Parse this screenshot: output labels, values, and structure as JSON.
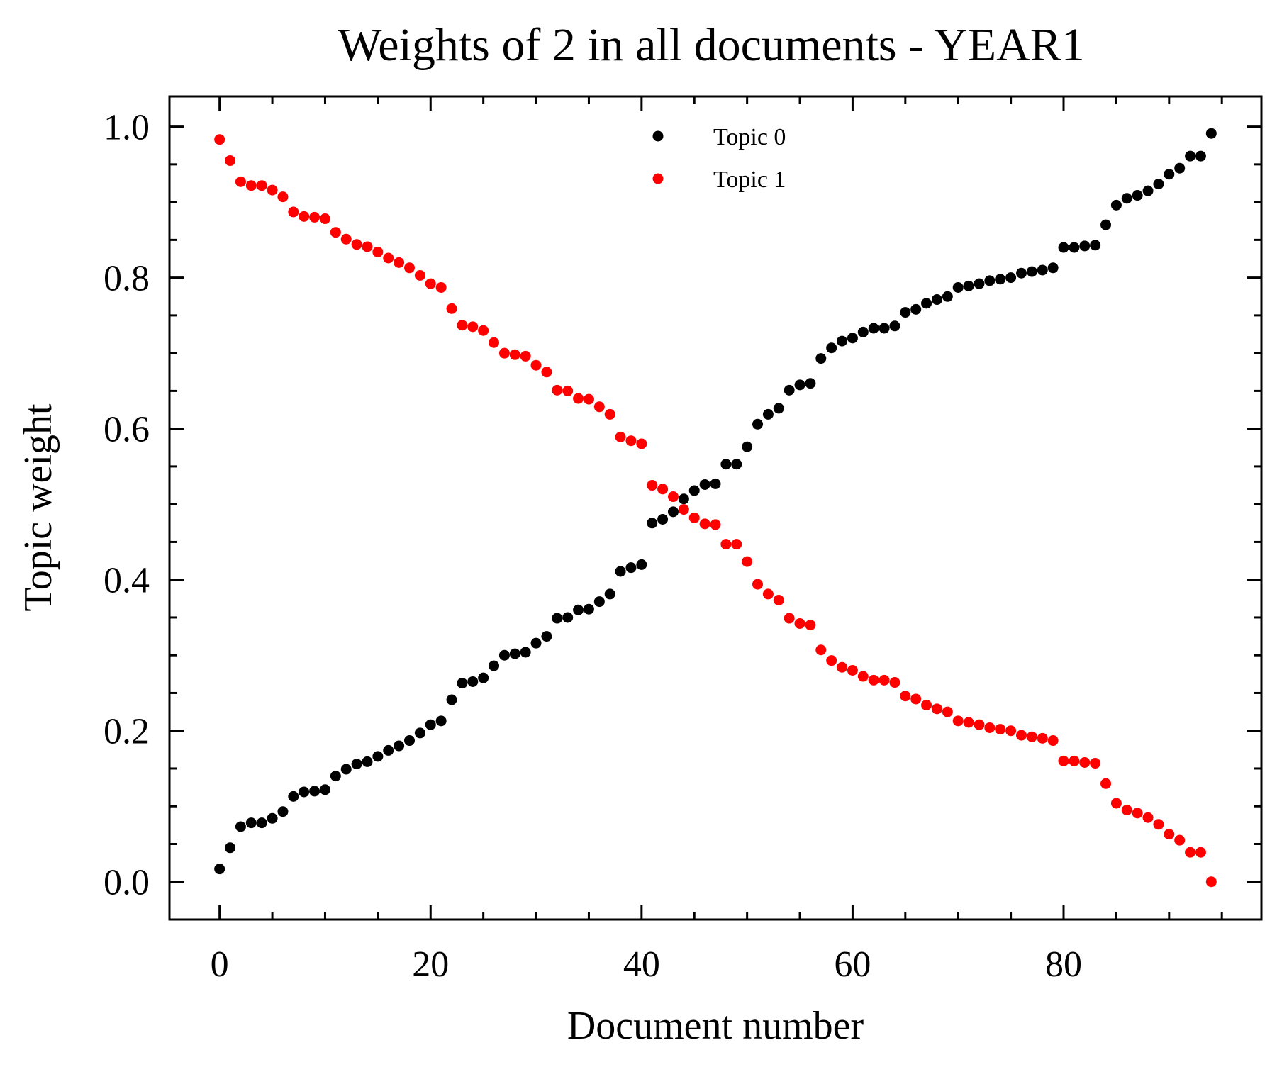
{
  "colors": {
    "Topic 0": "#000000",
    "Topic 1": "#ff0000"
  },
  "chart_data": {
    "type": "scatter",
    "title": "Weights of 2 in all documents - YEAR1",
    "xlabel": "Document number",
    "ylabel": "Topic weight",
    "xlim": [
      -4.75,
      98.75
    ],
    "ylim": [
      -0.05,
      1.04
    ],
    "xticks": [
      0,
      20,
      40,
      60,
      80
    ],
    "xtick_labels": [
      "0",
      "20",
      "40",
      "60",
      "80"
    ],
    "yticks": [
      0.0,
      0.2,
      0.4,
      0.6,
      0.8,
      1.0
    ],
    "ytick_labels": [
      "0.0",
      "0.2",
      "0.4",
      "0.6",
      "0.8",
      "1.0"
    ],
    "grid": false,
    "legend": "upper-center",
    "x": [
      0,
      1,
      2,
      3,
      4,
      5,
      6,
      7,
      8,
      9,
      10,
      11,
      12,
      13,
      14,
      15,
      16,
      17,
      18,
      19,
      20,
      21,
      22,
      23,
      24,
      25,
      26,
      27,
      28,
      29,
      30,
      31,
      32,
      33,
      34,
      35,
      36,
      37,
      38,
      39,
      40,
      41,
      42,
      43,
      44,
      45,
      46,
      47,
      48,
      49,
      50,
      51,
      52,
      53,
      54,
      55,
      56,
      57,
      58,
      59,
      60,
      61,
      62,
      63,
      64,
      65,
      66,
      67,
      68,
      69,
      70,
      71,
      72,
      73,
      74,
      75,
      76,
      77,
      78,
      79,
      80,
      81,
      82,
      83,
      84,
      85,
      86,
      87,
      88,
      89,
      90,
      91,
      92,
      93,
      94
    ],
    "series": [
      {
        "name": "Topic 0",
        "values": [
          0.017,
          0.045,
          0.073,
          0.078,
          0.078,
          0.084,
          0.093,
          0.113,
          0.119,
          0.12,
          0.122,
          0.14,
          0.149,
          0.156,
          0.159,
          0.166,
          0.174,
          0.18,
          0.187,
          0.197,
          0.208,
          0.213,
          0.241,
          0.263,
          0.265,
          0.27,
          0.286,
          0.3,
          0.302,
          0.304,
          0.316,
          0.325,
          0.349,
          0.35,
          0.36,
          0.361,
          0.371,
          0.381,
          0.411,
          0.416,
          0.42,
          0.475,
          0.48,
          0.49,
          0.507,
          0.518,
          0.526,
          0.527,
          0.553,
          0.553,
          0.576,
          0.606,
          0.619,
          0.627,
          0.651,
          0.658,
          0.66,
          0.693,
          0.707,
          0.716,
          0.72,
          0.728,
          0.733,
          0.733,
          0.736,
          0.754,
          0.758,
          0.766,
          0.771,
          0.775,
          0.787,
          0.789,
          0.792,
          0.796,
          0.798,
          0.8,
          0.806,
          0.808,
          0.81,
          0.813,
          0.84,
          0.84,
          0.842,
          0.843,
          0.87,
          0.896,
          0.905,
          0.909,
          0.915,
          0.924,
          0.937,
          0.945,
          0.961,
          0.961,
          0.991
        ]
      },
      {
        "name": "Topic 1",
        "values": [
          0.983,
          0.955,
          0.927,
          0.922,
          0.922,
          0.916,
          0.907,
          0.887,
          0.881,
          0.88,
          0.878,
          0.86,
          0.851,
          0.844,
          0.841,
          0.834,
          0.826,
          0.82,
          0.813,
          0.803,
          0.792,
          0.787,
          0.759,
          0.737,
          0.735,
          0.73,
          0.714,
          0.7,
          0.698,
          0.696,
          0.684,
          0.675,
          0.651,
          0.65,
          0.64,
          0.639,
          0.629,
          0.619,
          0.589,
          0.584,
          0.58,
          0.525,
          0.52,
          0.51,
          0.493,
          0.482,
          0.474,
          0.473,
          0.447,
          0.447,
          0.424,
          0.394,
          0.381,
          0.373,
          0.349,
          0.342,
          0.34,
          0.307,
          0.293,
          0.284,
          0.28,
          0.272,
          0.267,
          0.267,
          0.264,
          0.246,
          0.242,
          0.234,
          0.229,
          0.225,
          0.213,
          0.211,
          0.208,
          0.204,
          0.202,
          0.2,
          0.194,
          0.192,
          0.19,
          0.187,
          0.16,
          0.16,
          0.158,
          0.157,
          0.13,
          0.104,
          0.095,
          0.091,
          0.085,
          0.076,
          0.063,
          0.055,
          0.039,
          0.039,
          0.0
        ]
      }
    ]
  }
}
